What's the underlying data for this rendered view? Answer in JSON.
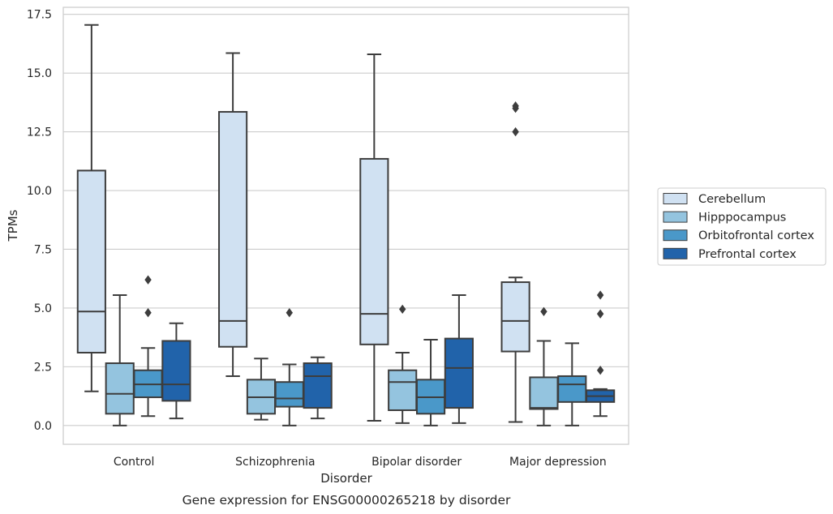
{
  "chart_data": {
    "type": "box",
    "xlabel": "Disorder",
    "ylabel": "TPMs",
    "caption": "Gene expression for ENSG00000265218 by disorder",
    "ylim": [
      -0.8,
      17.8
    ],
    "y_ticks": [
      0.0,
      2.5,
      5.0,
      7.5,
      10.0,
      12.5,
      15.0,
      17.5
    ],
    "y_tick_labels": [
      "0.0",
      "2.5",
      "5.0",
      "7.5",
      "10.0",
      "12.5",
      "15.0",
      "17.5"
    ],
    "grid": "horizontal",
    "legend_position": "right",
    "categories": [
      "Control",
      "Schizophrenia",
      "Bipolar disorder",
      "Major depression"
    ],
    "series": [
      {
        "name": "Cerebellum",
        "color": "#d0e1f2",
        "boxes": [
          {
            "whisker_low": 1.45,
            "q1": 3.1,
            "median": 4.85,
            "q3": 10.85,
            "whisker_high": 17.05,
            "outliers": []
          },
          {
            "whisker_low": 2.1,
            "q1": 3.35,
            "median": 4.45,
            "q3": 13.35,
            "whisker_high": 15.85,
            "outliers": []
          },
          {
            "whisker_low": 0.2,
            "q1": 3.45,
            "median": 4.75,
            "q3": 11.35,
            "whisker_high": 15.8,
            "outliers": []
          },
          {
            "whisker_low": 0.15,
            "q1": 3.15,
            "median": 4.45,
            "q3": 6.1,
            "whisker_high": 6.3,
            "outliers": [
              13.6,
              13.5,
              12.5
            ]
          }
        ]
      },
      {
        "name": "Hipppocampus",
        "color": "#94c4df",
        "boxes": [
          {
            "whisker_low": 0.0,
            "q1": 0.5,
            "median": 1.35,
            "q3": 2.65,
            "whisker_high": 5.55,
            "outliers": []
          },
          {
            "whisker_low": 0.25,
            "q1": 0.5,
            "median": 1.2,
            "q3": 1.95,
            "whisker_high": 2.85,
            "outliers": []
          },
          {
            "whisker_low": 0.1,
            "q1": 0.65,
            "median": 1.85,
            "q3": 2.35,
            "whisker_high": 3.1,
            "outliers": [
              4.95
            ]
          },
          {
            "whisker_low": 0.0,
            "q1": 0.7,
            "median": 0.75,
            "q3": 2.05,
            "whisker_high": 3.6,
            "outliers": [
              4.85
            ]
          }
        ]
      },
      {
        "name": "Orbitofrontal cortex",
        "color": "#4a98c9",
        "boxes": [
          {
            "whisker_low": 0.4,
            "q1": 1.2,
            "median": 1.75,
            "q3": 2.35,
            "whisker_high": 3.3,
            "outliers": [
              6.2,
              4.8
            ]
          },
          {
            "whisker_low": 0.0,
            "q1": 0.8,
            "median": 1.15,
            "q3": 1.85,
            "whisker_high": 2.6,
            "outliers": [
              4.8
            ]
          },
          {
            "whisker_low": 0.0,
            "q1": 0.5,
            "median": 1.2,
            "q3": 1.95,
            "whisker_high": 3.65,
            "outliers": []
          },
          {
            "whisker_low": 0.0,
            "q1": 1.0,
            "median": 1.75,
            "q3": 2.1,
            "whisker_high": 3.5,
            "outliers": []
          }
        ]
      },
      {
        "name": "Prefrontal cortex",
        "color": "#2163aa",
        "boxes": [
          {
            "whisker_low": 0.3,
            "q1": 1.05,
            "median": 1.75,
            "q3": 3.6,
            "whisker_high": 4.35,
            "outliers": []
          },
          {
            "whisker_low": 0.3,
            "q1": 0.75,
            "median": 2.1,
            "q3": 2.65,
            "whisker_high": 2.9,
            "outliers": []
          },
          {
            "whisker_low": 0.1,
            "q1": 0.75,
            "median": 2.45,
            "q3": 3.7,
            "whisker_high": 5.55,
            "outliers": []
          },
          {
            "whisker_low": 0.4,
            "q1": 1.0,
            "median": 1.25,
            "q3": 1.5,
            "whisker_high": 1.55,
            "outliers": [
              5.55,
              4.75,
              2.35
            ]
          }
        ]
      }
    ]
  }
}
